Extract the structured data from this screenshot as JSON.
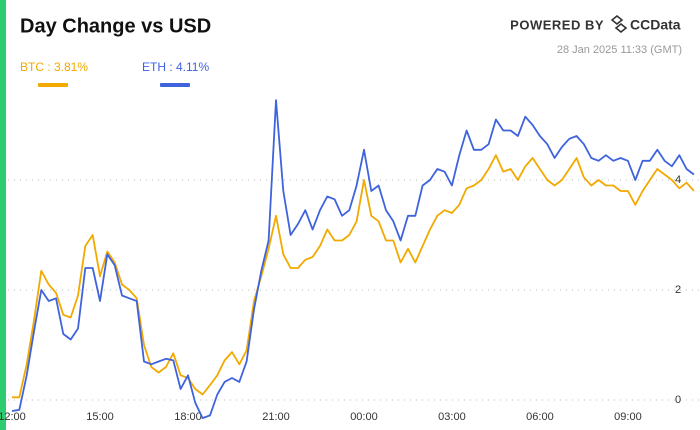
{
  "chart_data": {
    "type": "line",
    "title": "Day Change vs USD",
    "brand_prefix": "POWERED BY",
    "brand": "CCData",
    "timestamp": "28 Jan 2025 11:33 (GMT)",
    "x": [
      "12:00",
      "12:15",
      "12:30",
      "12:45",
      "13:00",
      "13:15",
      "13:30",
      "13:45",
      "14:00",
      "14:15",
      "14:30",
      "14:45",
      "15:00",
      "15:15",
      "15:30",
      "15:45",
      "16:00",
      "16:15",
      "16:30",
      "16:45",
      "17:00",
      "17:15",
      "17:30",
      "17:45",
      "18:00",
      "18:15",
      "18:30",
      "18:45",
      "19:00",
      "19:15",
      "19:30",
      "19:45",
      "20:00",
      "20:15",
      "20:30",
      "20:45",
      "21:00",
      "21:15",
      "21:30",
      "21:45",
      "22:00",
      "22:15",
      "22:30",
      "22:45",
      "23:00",
      "23:15",
      "23:30",
      "23:45",
      "00:00",
      "00:15",
      "00:30",
      "00:45",
      "01:00",
      "01:15",
      "01:30",
      "01:45",
      "02:00",
      "02:15",
      "02:30",
      "02:45",
      "03:00",
      "03:15",
      "03:30",
      "03:45",
      "04:00",
      "04:15",
      "04:30",
      "04:45",
      "05:00",
      "05:15",
      "05:30",
      "05:45",
      "06:00",
      "06:15",
      "06:30",
      "06:45",
      "07:00",
      "07:15",
      "07:30",
      "07:45",
      "08:00",
      "08:15",
      "08:30",
      "08:45",
      "09:00",
      "09:15",
      "09:30",
      "09:45",
      "10:00",
      "10:15",
      "10:30",
      "10:45",
      "11:00",
      "11:15"
    ],
    "series": [
      {
        "name": "BTC : 3.81%",
        "color": "#f2a900",
        "values": [
          0.05,
          0.05,
          0.65,
          1.45,
          2.35,
          2.1,
          1.95,
          1.55,
          1.5,
          1.9,
          2.8,
          3.0,
          2.25,
          2.7,
          2.5,
          2.1,
          2.0,
          1.85,
          1.0,
          0.6,
          0.5,
          0.6,
          0.85,
          0.45,
          0.4,
          0.2,
          0.1,
          0.27,
          0.45,
          0.72,
          0.87,
          0.65,
          0.9,
          1.8,
          2.25,
          2.75,
          3.35,
          2.65,
          2.4,
          2.4,
          2.55,
          2.6,
          2.8,
          3.1,
          2.9,
          2.9,
          3.0,
          3.25,
          4.0,
          3.35,
          3.25,
          2.9,
          2.9,
          2.5,
          2.75,
          2.5,
          2.8,
          3.1,
          3.35,
          3.45,
          3.4,
          3.55,
          3.85,
          3.9,
          4.0,
          4.2,
          4.45,
          4.15,
          4.2,
          4.0,
          4.25,
          4.4,
          4.2,
          4.0,
          3.9,
          4.0,
          4.2,
          4.4,
          4.05,
          3.9,
          4.0,
          3.9,
          3.9,
          3.8,
          3.8,
          3.55,
          3.8,
          4.0,
          4.2,
          4.1,
          4.0,
          3.85,
          3.95,
          3.8
        ]
      },
      {
        "name": "ETH : 4.11%",
        "color": "#3e63dd",
        "values": [
          -0.2,
          -0.18,
          0.45,
          1.25,
          2.0,
          1.8,
          1.85,
          1.2,
          1.1,
          1.3,
          2.4,
          2.4,
          1.8,
          2.65,
          2.45,
          1.9,
          1.85,
          1.8,
          0.7,
          0.65,
          0.7,
          0.75,
          0.72,
          0.2,
          0.45,
          -0.05,
          -0.33,
          -0.28,
          0.1,
          0.33,
          0.4,
          0.33,
          0.7,
          1.65,
          2.35,
          2.9,
          5.45,
          3.8,
          3.0,
          3.2,
          3.45,
          3.1,
          3.45,
          3.7,
          3.65,
          3.35,
          3.45,
          3.9,
          4.55,
          3.8,
          3.9,
          3.45,
          3.25,
          2.9,
          3.35,
          3.35,
          3.9,
          4.0,
          4.2,
          4.15,
          3.9,
          4.45,
          4.9,
          4.55,
          4.55,
          4.65,
          5.1,
          4.9,
          4.9,
          4.8,
          5.15,
          5.0,
          4.8,
          4.65,
          4.4,
          4.6,
          4.75,
          4.8,
          4.65,
          4.4,
          4.35,
          4.45,
          4.35,
          4.4,
          4.35,
          4.0,
          4.35,
          4.35,
          4.55,
          4.35,
          4.25,
          4.45,
          4.2,
          4.1
        ]
      }
    ],
    "xticks": [
      "12:00",
      "15:00",
      "18:00",
      "21:00",
      "00:00",
      "03:00",
      "06:00",
      "09:00"
    ],
    "ylim": [
      -0.4,
      5.6
    ],
    "yticks": [
      0,
      2,
      4
    ],
    "grid": true
  }
}
